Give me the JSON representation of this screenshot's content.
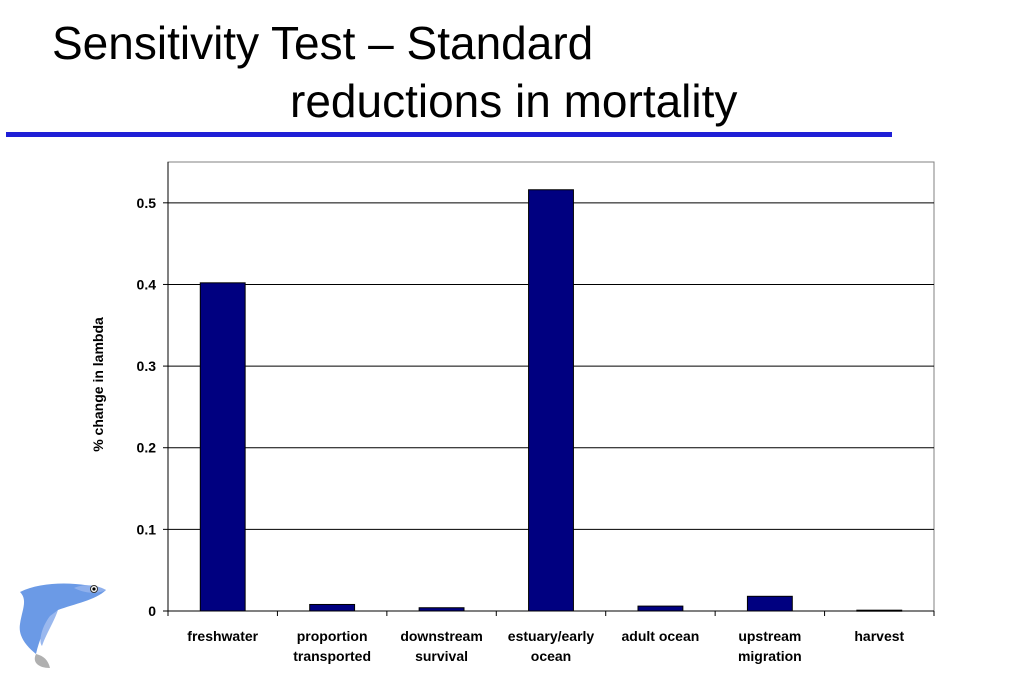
{
  "slide": {
    "title_line1": "Sensitivity Test – Standard",
    "title_line2": "reductions in mortality",
    "rule_color": "#1f1fd6"
  },
  "chart_data": {
    "type": "bar",
    "categories": [
      [
        "freshwater"
      ],
      [
        "proportion",
        "transported"
      ],
      [
        "downstream",
        "survival"
      ],
      [
        "estuary/early",
        "ocean"
      ],
      [
        "adult ocean"
      ],
      [
        "upstream",
        "migration"
      ],
      [
        "harvest"
      ]
    ],
    "values": [
      0.402,
      0.008,
      0.004,
      0.516,
      0.006,
      0.018,
      0.001
    ],
    "ylabel": "% change in lambda",
    "xlabel": "",
    "ylim": [
      0,
      0.55
    ],
    "yticks": [
      0,
      0.1,
      0.2,
      0.3,
      0.4,
      0.5
    ],
    "ytick_labels": [
      "0",
      "0.1",
      "0.2",
      "0.3",
      "0.4",
      "0.5"
    ],
    "grid": true,
    "bar_color": "#000080"
  },
  "decoration": {
    "icon": "jumping-fish-icon"
  }
}
